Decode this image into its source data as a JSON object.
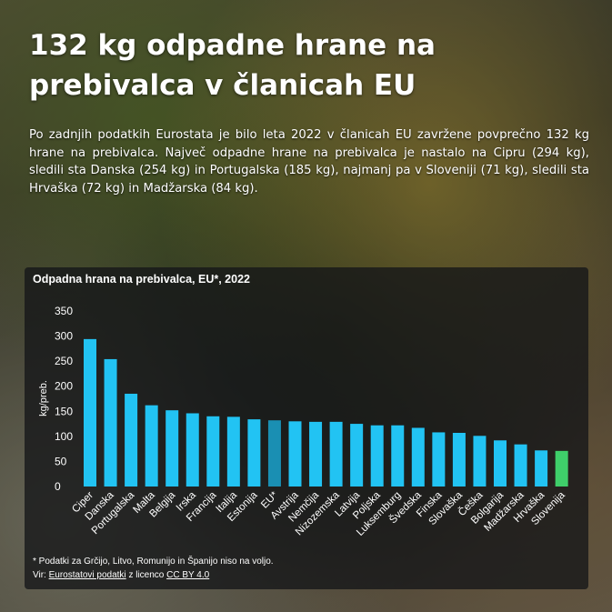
{
  "header": {
    "title": "132 kg odpadne hrane na prebivalca v članicah EU",
    "lead": "Po zadnjih podatkih Eurostata je bilo leta 2022 v članicah EU zavržene povprečno 132 kg hrane na prebivalca. Največ odpadne hrane na prebivalca je nastalo na Cipru (294 kg), sledili sta Danska (254 kg) in Portugalska (185 kg), najmanj pa v Sloveniji (71 kg), sledili sta Hrvaška (72 kg) in Madžarska (84 kg)."
  },
  "chart_data": {
    "type": "bar",
    "title": "Odpadna hrana na prebivalca, EU*, 2022",
    "ylabel": "kg/preb.",
    "xlabel": "",
    "ylim": [
      0,
      350
    ],
    "yticks": [
      0,
      50,
      100,
      150,
      200,
      250,
      300,
      350
    ],
    "grid": false,
    "categories": [
      "Ciper",
      "Danska",
      "Portugalska",
      "Malta",
      "Belgija",
      "Irska",
      "Francija",
      "Italija",
      "Estonija",
      "EU*",
      "Avstrija",
      "Nemčija",
      "Nizozemska",
      "Latvija",
      "Poljska",
      "Luksemburg",
      "Švedska",
      "Finska",
      "Slovaška",
      "Češka",
      "Bolgarija",
      "Madžarska",
      "Hrvaška",
      "Slovenija"
    ],
    "values": [
      294,
      254,
      185,
      162,
      152,
      146,
      140,
      139,
      134,
      132,
      130,
      129,
      129,
      125,
      122,
      122,
      117,
      108,
      107,
      101,
      92,
      84,
      72,
      71
    ],
    "colors": {
      "default": "#22c3f3",
      "eu_average": "#1a8fb3",
      "slovenia": "#3fcf6a"
    }
  },
  "notes": {
    "footnote": "* Podatki za Grčijo, Litvo, Romunijo in Španijo niso na voljo.",
    "source_prefix": "Vir: ",
    "source_link": "Eurostatovi podatki",
    "source_mid": " z licenco ",
    "license_link": "CC BY 4.0"
  }
}
